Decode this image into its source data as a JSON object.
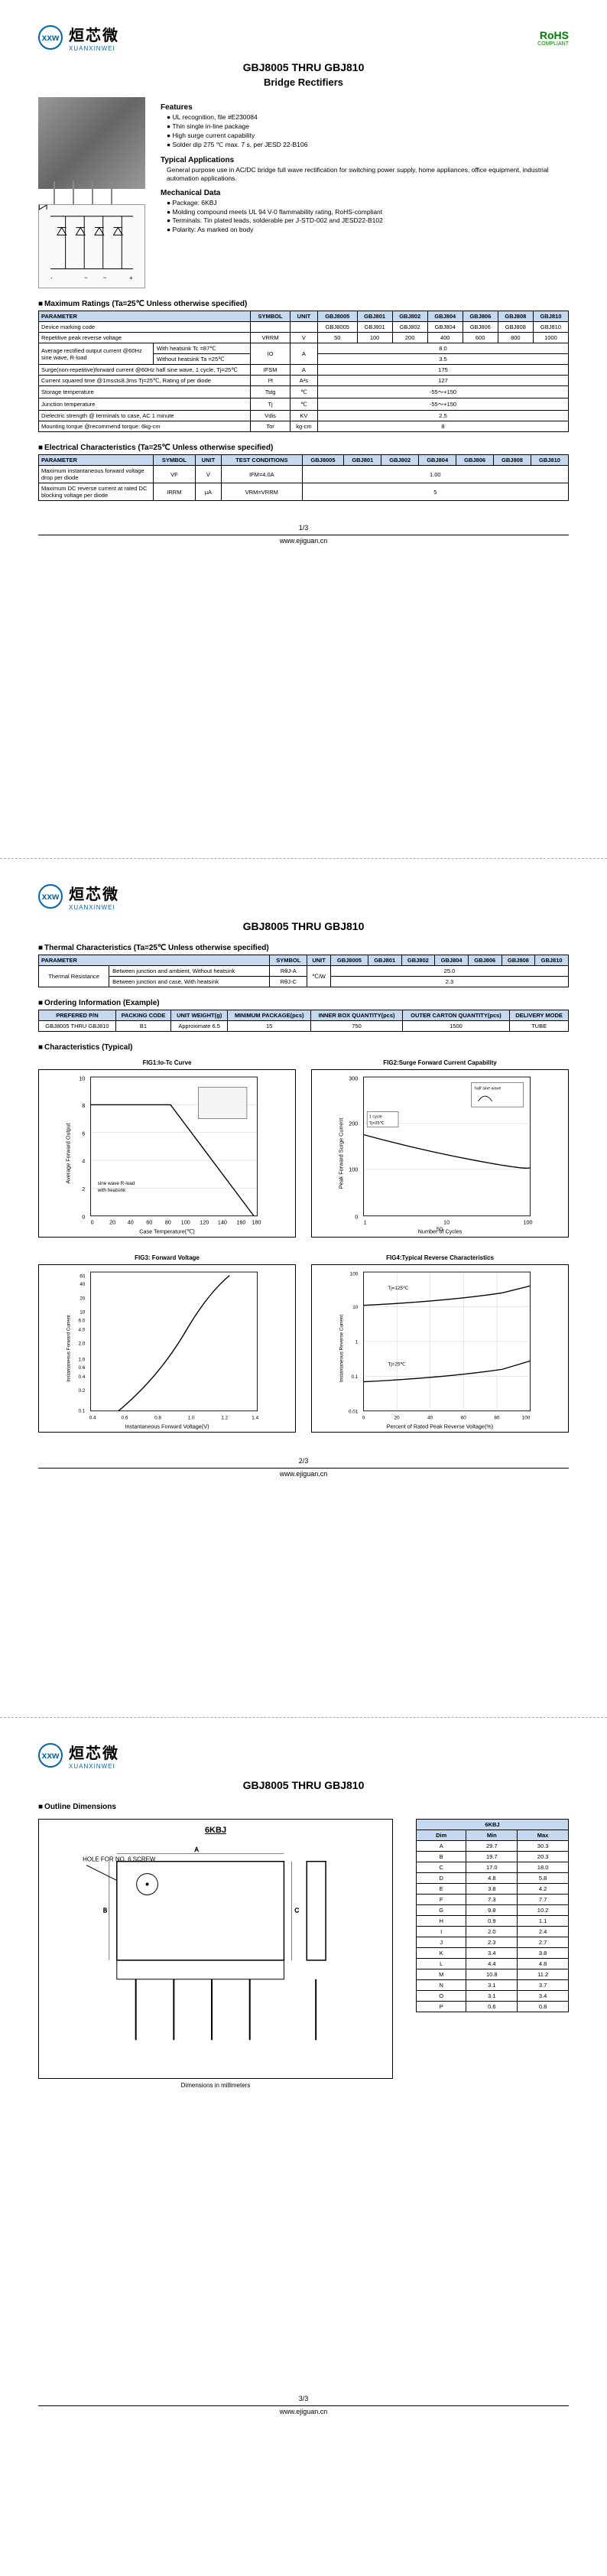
{
  "company": {
    "logo_abbr": "xxw",
    "name_cn": "烜芯微",
    "name_en": "XUANXINWEI"
  },
  "rohs": {
    "label": "RoHS",
    "sub": "COMPLIANT"
  },
  "title": "GBJ8005 THRU GBJ810",
  "subtitle": "Bridge Rectifiers",
  "features": {
    "header": "Features",
    "items": [
      "UL recognition, file #E230084",
      "Thin single in-line package",
      "High surge current capability",
      "Solder dip 275 ℃ max. 7 s, per JESD 22-B106"
    ]
  },
  "applications": {
    "header": "Typical Applications",
    "text": "General purpose use in AC/DC bridge full wave rectification for switching power supply, home appliances, office equipment, industrial automation applications."
  },
  "mechanical": {
    "header": "Mechanical Data",
    "items": [
      "Package: 6KBJ",
      "Molding compound meets UL 94 V-0 flammability rating, RoHS-compliant",
      "Terminals: Tin plated leads, solderable per J-STD-002 and JESD22-B102",
      "Polarity: As marked on body"
    ]
  },
  "max_ratings": {
    "title": "Maximum Ratings (Ta=25℃ Unless otherwise specified)",
    "headers": [
      "PARAMETER",
      "SYMBOL",
      "UNIT",
      "GBJ8005",
      "GBJ801",
      "GBJ802",
      "GBJ804",
      "GBJ806",
      "GBJ808",
      "GBJ810"
    ],
    "rows": [
      {
        "param": "Device marking code",
        "sym": "",
        "unit": "",
        "vals": [
          "GBJ8005",
          "GBJ801",
          "GBJ802",
          "GBJ804",
          "GBJ806",
          "GBJ808",
          "GBJ810"
        ]
      },
      {
        "param": "Repetitive peak reverse voltage",
        "sym": "VRRM",
        "unit": "V",
        "vals": [
          "50",
          "100",
          "200",
          "400",
          "600",
          "800",
          "1000"
        ]
      },
      {
        "param_multi": "Average rectified output current @60Hz sine wave, R-load",
        "subs": [
          [
            "With heatsink Tc =87℃",
            "IO",
            "A",
            "8.0"
          ],
          [
            "Without heatsink Ta =25℃",
            "",
            "",
            "3.5"
          ]
        ]
      },
      {
        "param": "Surge(non-repetitive)forward current @60Hz half sine wave, 1 cycle, Tj=25℃",
        "sym": "IFSM",
        "unit": "A",
        "span": "175"
      },
      {
        "param": "Current squared time @1ms≤t≤8.3ms Tj=25℃, Rating of per diode",
        "sym": "I²t",
        "unit": "A²s",
        "span": "127"
      },
      {
        "param": "Storage temperature",
        "sym": "Tstg",
        "unit": "℃",
        "span": "-55～+150"
      },
      {
        "param": "Junction temperature",
        "sym": "Tj",
        "unit": "℃",
        "span": "-55～+150"
      },
      {
        "param": "Dielectric strength @ terminals to case, AC 1 minute",
        "sym": "Vdis",
        "unit": "KV",
        "span": "2.5"
      },
      {
        "param": "Mounting torque @recommend torque: 6kg-cm",
        "sym": "Tor",
        "unit": "kg-cm",
        "span": "8"
      }
    ]
  },
  "elec_char": {
    "title": "Electrical Characteristics (Ta=25℃ Unless otherwise specified)",
    "headers": [
      "PARAMETER",
      "SYMBOL",
      "UNIT",
      "TEST CONDITIONS",
      "GBJ8005",
      "GBJ801",
      "GBJ802",
      "GBJ804",
      "GBJ806",
      "GBJ808",
      "GBJ810"
    ],
    "rows": [
      {
        "p": "Maximum instantaneous forward voltage drop per diode",
        "s": "VF",
        "u": "V",
        "c": "IFM=4.0A",
        "span": "1.00"
      },
      {
        "p": "Maximum DC reverse current at rated DC blocking voltage per diode",
        "s": "IRRM",
        "u": "μA",
        "c": "VRM=VRRM",
        "span": "5"
      }
    ]
  },
  "thermal": {
    "title": "Thermal Characteristics (Ta=25℃ Unless otherwise specified)",
    "headers": [
      "PARAMETER",
      "SYMBOL",
      "UNIT",
      "GBJ8005",
      "GBJ801",
      "GBJ802",
      "GBJ804",
      "GBJ806",
      "GBJ808",
      "GBJ810"
    ],
    "group": "Thermal Resistance",
    "rows": [
      {
        "p": "Between junction and ambient, Without heatsink",
        "s": "RθJ-A",
        "u": "℃/W",
        "span": "25.0"
      },
      {
        "p": "Between junction and case, With heatsink",
        "s": "RθJ-C",
        "u": "",
        "span": "2.3"
      }
    ]
  },
  "ordering": {
    "title": "Ordering Information (Example)",
    "headers": [
      "PREFERED P/N",
      "PACKING CODE",
      "UNIT WEIGHT(g)",
      "MINIMUM PACKAGE(pcs)",
      "INNER BOX QUANTITY(pcs)",
      "OUTER CARTON QUANTITY(pcs)",
      "DELIVERY MODE"
    ],
    "row": [
      "GBJ8005 THRU GBJ810",
      "B1",
      "Approximate 6.5",
      "15",
      "750",
      "1500",
      "TUBE"
    ]
  },
  "charts_title": "Characteristics (Typical)",
  "charts": {
    "fig1": {
      "title": "FIG1:Io-Tc Curve",
      "xlabel": "Case Temperature(℃)",
      "ylabel": "Average Forward Output",
      "xlim": [
        0,
        180
      ],
      "ylim": [
        0,
        10
      ],
      "note1": "sine wave R-load",
      "note2": "with heatsink"
    },
    "fig2": {
      "title": "FIG2:Surge Forward Current Capability",
      "xlabel": "Number of Cycles",
      "ylabel": "Peak Forward Surge Current",
      "xlim": [
        1,
        100
      ],
      "ylim": [
        0,
        300
      ],
      "note": "half sine wave",
      "cond": "1 cycle\nTj=25℃"
    },
    "fig3": {
      "title": "FIG3: Forward Voltage",
      "xlabel": "Instantaneous Forward Voltage(V)",
      "ylabel": "Instantaneous Forward Current",
      "xlim": [
        0.4,
        1.4
      ],
      "ylim": [
        0.1,
        60
      ]
    },
    "fig4": {
      "title": "FIG4:Typical Reverse Characteristics",
      "xlabel": "Percent of Rated Peak Reverse Voltage(%)",
      "ylabel": "Instantaneous Reverse Current",
      "xlim": [
        0,
        100
      ],
      "ylim": [
        0.01,
        100
      ],
      "t1": "Tj=125℃",
      "t2": "Tj=25℃"
    }
  },
  "outline": {
    "title": "Outline Dimensions",
    "pkg": "6KBJ",
    "note": "HOLE FOR NO. 6 SCREW",
    "caption": "Dimensions in millimeters",
    "headers": [
      "Dim",
      "Min",
      "Max"
    ],
    "rows": [
      [
        "A",
        "29.7",
        "30.3"
      ],
      [
        "B",
        "19.7",
        "20.3"
      ],
      [
        "C",
        "17.0",
        "18.0"
      ],
      [
        "D",
        "4.8",
        "5.8"
      ],
      [
        "E",
        "3.8",
        "4.2"
      ],
      [
        "F",
        "7.3",
        "7.7"
      ],
      [
        "G",
        "9.8",
        "10.2"
      ],
      [
        "H",
        "0.9",
        "1.1"
      ],
      [
        "I",
        "2.0",
        "2.4"
      ],
      [
        "J",
        "2.3",
        "2.7"
      ],
      [
        "K",
        "3.4",
        "3.8"
      ],
      [
        "L",
        "4.4",
        "4.8"
      ],
      [
        "M",
        "10.8",
        "11.2"
      ],
      [
        "N",
        "3.1",
        "3.7"
      ],
      [
        "O",
        "3.1",
        "3.4"
      ],
      [
        "P",
        "0.6",
        "0.8"
      ]
    ]
  },
  "footer": {
    "p1": "1/3",
    "p2": "2/3",
    "p3": "3/3",
    "url": "www.ejiguan.cn"
  }
}
